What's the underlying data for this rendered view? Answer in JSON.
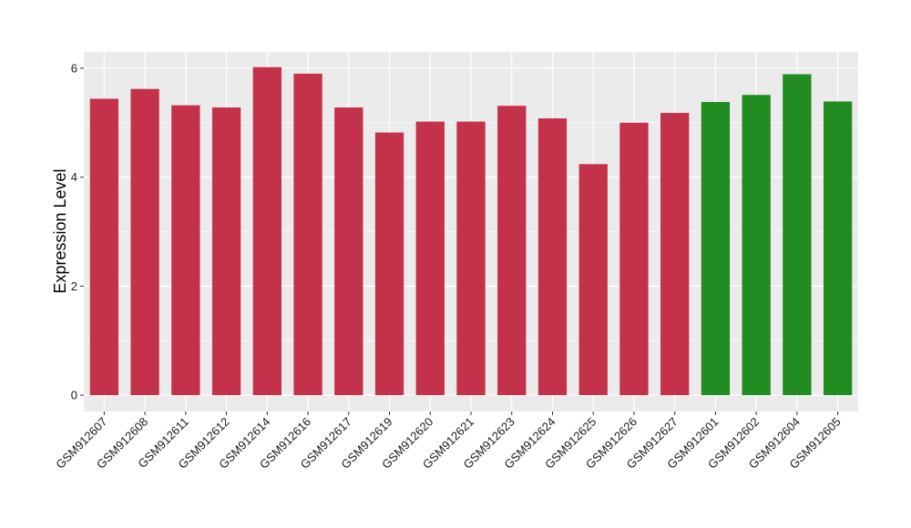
{
  "chart_data": {
    "type": "bar",
    "title": "",
    "xlabel": "",
    "ylabel": "Expression Level",
    "ylim": [
      -0.3,
      6.3
    ],
    "yticks": [
      0,
      2,
      4,
      6
    ],
    "grid": true,
    "legend": "none",
    "categories": [
      "GSM912607",
      "GSM912608",
      "GSM912611",
      "GSM912612",
      "GSM912614",
      "GSM912616",
      "GSM912617",
      "GSM912619",
      "GSM912620",
      "GSM912621",
      "GSM912623",
      "GSM912624",
      "GSM912625",
      "GSM912626",
      "GSM912627",
      "GSM912601",
      "GSM912602",
      "GSM912604",
      "GSM912605"
    ],
    "values": [
      5.44,
      5.62,
      5.32,
      5.28,
      6.02,
      5.9,
      5.28,
      4.82,
      5.02,
      5.02,
      5.31,
      5.08,
      4.24,
      5.0,
      5.18,
      5.38,
      5.51,
      5.89,
      5.39
    ],
    "groups": [
      "red",
      "red",
      "red",
      "red",
      "red",
      "red",
      "red",
      "red",
      "red",
      "red",
      "red",
      "red",
      "red",
      "red",
      "red",
      "green",
      "green",
      "green",
      "green"
    ],
    "colors": {
      "red": "#C4314B",
      "green": "#228B22",
      "panel": "#EBEBEB",
      "grid": "#FFFFFF"
    }
  }
}
